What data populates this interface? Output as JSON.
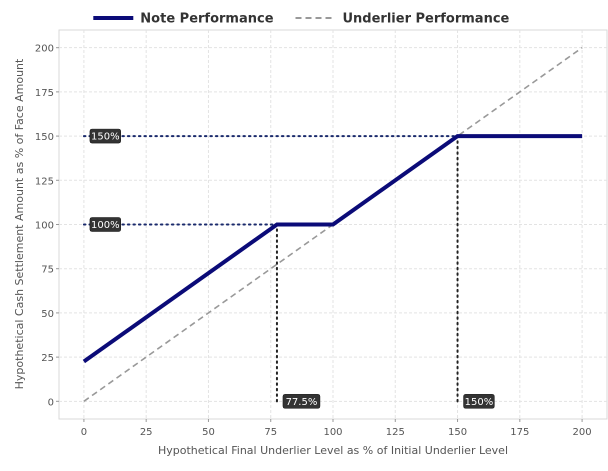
{
  "chart_data": {
    "type": "line",
    "title": "",
    "xlabel": "Hypothetical Final Underlier Level as % of Initial Underlier Level",
    "ylabel": "Hypothetical Cash Settlement Amount as % of Face Amount",
    "xlim": [
      -10,
      210
    ],
    "ylim": [
      -10,
      210
    ],
    "xticks": [
      0,
      25,
      50,
      75,
      100,
      125,
      150,
      175,
      200
    ],
    "yticks": [
      0,
      25,
      50,
      75,
      100,
      125,
      150,
      175,
      200
    ],
    "grid": true,
    "legend_position": "top",
    "series": [
      {
        "name": "Note Performance",
        "color": "#0b0b78",
        "style": "solid",
        "x": [
          0,
          77.5,
          100,
          150,
          200
        ],
        "y": [
          22.5,
          100,
          100,
          150,
          150
        ]
      },
      {
        "name": "Underlier Performance",
        "color": "#999999",
        "style": "dashed",
        "x": [
          0,
          200
        ],
        "y": [
          0,
          200
        ]
      }
    ],
    "reference_lines": [
      {
        "orientation": "horizontal",
        "y": 150,
        "x_from": 0,
        "x_to": 150,
        "color": "#1a2a6c"
      },
      {
        "orientation": "horizontal",
        "y": 100,
        "x_from": 0,
        "x_to": 77.5,
        "color": "#1a2a6c"
      },
      {
        "orientation": "vertical",
        "x": 77.5,
        "y_from": 0,
        "y_to": 100,
        "color": "#222222"
      },
      {
        "orientation": "vertical",
        "x": 150,
        "y_from": 0,
        "y_to": 150,
        "color": "#222222"
      }
    ],
    "annotations": [
      {
        "text": "150%",
        "x": 0,
        "y": 150,
        "axis": "y"
      },
      {
        "text": "100%",
        "x": 0,
        "y": 100,
        "axis": "y"
      },
      {
        "text": "77.5%",
        "x": 77.5,
        "y": 0,
        "axis": "x"
      },
      {
        "text": "150%",
        "x": 150,
        "y": 0,
        "axis": "x"
      }
    ]
  }
}
